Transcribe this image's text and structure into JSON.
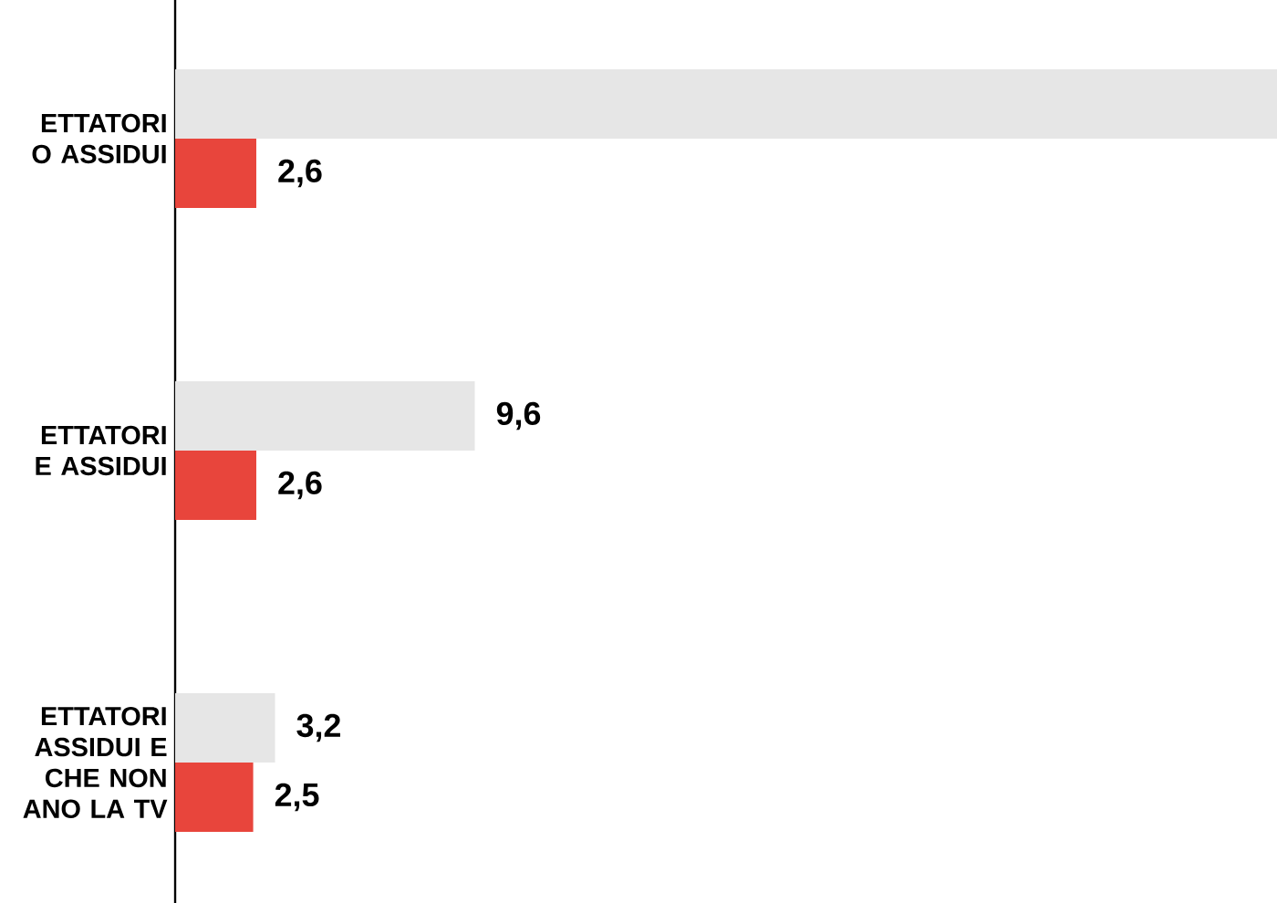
{
  "chart_data": {
    "type": "bar",
    "orientation": "horizontal",
    "categories": [
      "ETTATORI O ASSIDUI",
      "ETTATORI E ASSIDUI",
      "ETTATORI ASSIDUI E CHE NON ANO LA TV"
    ],
    "series": [
      {
        "color": "#e6e6e6",
        "values": [
          35.3,
          9.6,
          3.2
        ],
        "value_labels": [
          null,
          "9,6",
          "3,2"
        ]
      },
      {
        "color": "#e8453c",
        "values": [
          2.6,
          2.6,
          2.5
        ],
        "value_labels": [
          "2,6",
          "2,6",
          "2,5"
        ]
      }
    ],
    "tick_labels": "y"
  }
}
